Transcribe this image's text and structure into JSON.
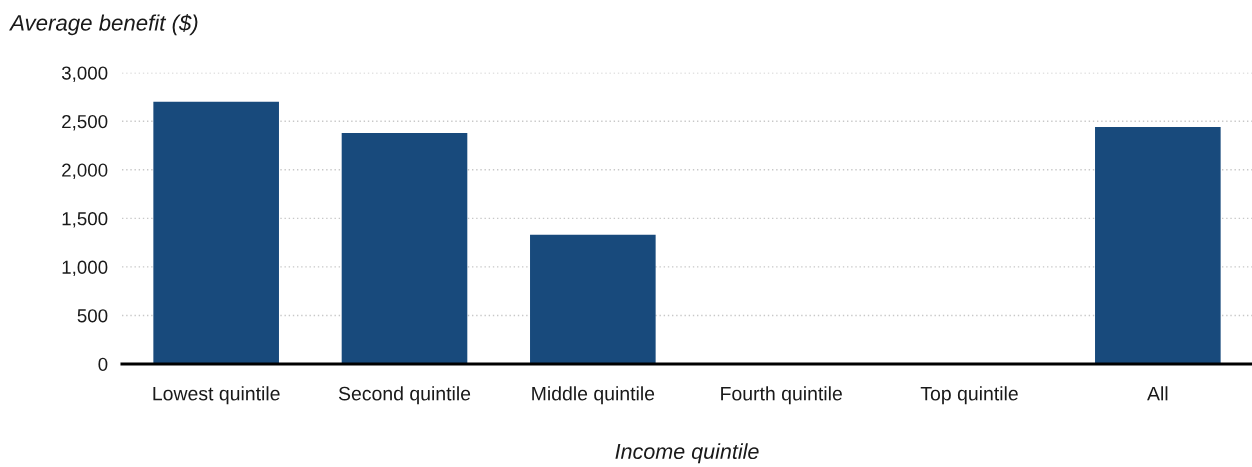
{
  "chart_data": {
    "type": "bar",
    "ylabel": "Average benefit ($)",
    "xlabel": "Income quintile",
    "categories": [
      "Lowest quintile",
      "Second quintile",
      "Middle quintile",
      "Fourth quintile",
      "Top quintile",
      "All"
    ],
    "values": [
      2700,
      2380,
      1330,
      0,
      0,
      2440
    ],
    "color": "#184a7c",
    "ylim": [
      0,
      3000
    ],
    "yticks": [
      0,
      500,
      {
        "value": 1000,
        "label": "1,000"
      },
      {
        "value": 1500,
        "label": "1,500"
      },
      {
        "value": 2000,
        "label": "2,000"
      },
      {
        "value": 2500,
        "label": "2,500"
      },
      {
        "value": 3000,
        "label": "3,000"
      }
    ],
    "grid": "y",
    "legend": false
  }
}
